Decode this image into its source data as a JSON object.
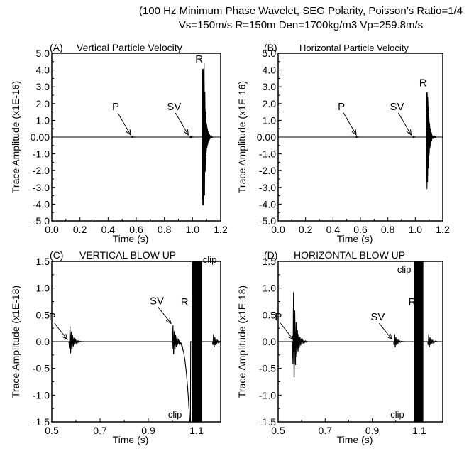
{
  "header": {
    "line1": "(100 Hz Minimum Phase Wavelet, SEG Polarity, Poisson’s Ratio=1/4",
    "line2": "Vs=150m/s  R=150m  Den=1700kg/m3  Vp=259.8m/s"
  },
  "chart_data": [
    {
      "type": "line",
      "panel": "(A)",
      "title": "Vertical Particle Velocity",
      "xlabel": "Time (s)",
      "ylabel": "Trace Amplitude (x1E-16)",
      "xlim": [
        0.0,
        1.2
      ],
      "ylim": [
        -5.0,
        5.0
      ],
      "xticks": [
        "0.0",
        "0.2",
        "0.4",
        "0.6",
        "0.8",
        "1.0",
        "1.2"
      ],
      "yticks": [
        "5.0",
        "4.0",
        "3.0",
        "2.0",
        "1.0",
        "0.00",
        "-1.0",
        "-2.0",
        "-3.0",
        "-4.0",
        "-5.0"
      ],
      "events": [
        {
          "label": "P",
          "x": 0.57,
          "y": 0.0
        },
        {
          "label": "SV",
          "x": 0.98,
          "y": 0.0
        },
        {
          "label": "R",
          "x": 1.08,
          "y": 4.1
        }
      ],
      "wavelets": [
        {
          "t": 0.57,
          "amp": 0.03,
          "decay": 0.008,
          "freq": 100
        },
        {
          "t": 0.985,
          "amp": 0.05,
          "decay": 0.008,
          "freq": 100
        },
        {
          "t": 1.082,
          "amp": 4.1,
          "decay": 0.012,
          "freq": 100
        },
        {
          "t": 1.075,
          "amp": -4.3,
          "decay": 0.01,
          "freq": 100
        }
      ],
      "clip": null
    },
    {
      "type": "line",
      "panel": "(B)",
      "title": "Horizontal Particle Velocity",
      "xlabel": "Time (s)",
      "ylabel": "Trace Amplitude (x1E-16)",
      "xlim": [
        0.0,
        1.2
      ],
      "ylim": [
        -5.0,
        5.0
      ],
      "xticks": [
        "0.0",
        "0.2",
        "0.4",
        "0.6",
        "0.8",
        "1.0",
        "1.2"
      ],
      "yticks": [
        "5.0",
        "4.0",
        "3.0",
        "2.0",
        "1.0",
        "0.00",
        "-1.0",
        "-2.0",
        "-3.0",
        "-4.0",
        "-5.0"
      ],
      "events": [
        {
          "label": "P",
          "x": 0.58,
          "y": 0.0
        },
        {
          "label": "SV",
          "x": 0.98,
          "y": 0.0
        },
        {
          "label": "R",
          "x": 1.09,
          "y": 2.7
        }
      ],
      "wavelets": [
        {
          "t": 0.57,
          "amp": 0.03,
          "decay": 0.008,
          "freq": 100
        },
        {
          "t": 0.985,
          "amp": 0.04,
          "decay": 0.008,
          "freq": 100
        },
        {
          "t": 1.09,
          "amp": 2.6,
          "decay": 0.012,
          "freq": 100
        },
        {
          "t": 1.085,
          "amp": -3.2,
          "decay": 0.01,
          "freq": 100
        }
      ],
      "clip": null
    },
    {
      "type": "line",
      "panel": "(C)",
      "title": "VERTICAL BLOW UP",
      "xlabel": "Time (s)",
      "ylabel": "Trace Amplitude (x1E-18)",
      "xlim": [
        0.5,
        1.2
      ],
      "ylim": [
        -1.5,
        1.5
      ],
      "xticks": [
        "0.5",
        "0.7",
        "0.9",
        "1.1"
      ],
      "yticks": [
        "1.5",
        "1.0",
        "0.5",
        "0.0",
        "-0.5",
        "-1.0",
        "-1.5"
      ],
      "events": [
        {
          "label": "P",
          "x": 0.57,
          "y": 0.0
        },
        {
          "label": "SV",
          "x": 1.0,
          "y": 0.3
        },
        {
          "label": "R",
          "x": 1.07,
          "y": 1.2
        }
      ],
      "wavelets": [
        {
          "t": 0.575,
          "amp": 0.3,
          "decay": 0.012,
          "freq": 100
        },
        {
          "t": 1.002,
          "amp": 0.32,
          "decay": 0.012,
          "freq": 100
        },
        {
          "t": 1.17,
          "amp": 0.15,
          "decay": 0.01,
          "freq": 100
        }
      ],
      "band": [
        1.082,
        1.12
      ],
      "dip": {
        "start": 1.02,
        "end": 1.075,
        "floor": -1.5
      },
      "clip": {
        "top": "clip",
        "bottom": "clip"
      }
    },
    {
      "type": "line",
      "panel": "(D)",
      "title": "HORIZONTAL BLOW UP",
      "xlabel": "Time (s)",
      "ylabel": "Trace Amplitude (x1E-18)",
      "xlim": [
        0.5,
        1.2
      ],
      "ylim": [
        -1.5,
        1.5
      ],
      "xticks": [
        "0.5",
        "0.7",
        "0.9",
        "1.1"
      ],
      "yticks": [
        "1.5",
        "1.0",
        "0.5",
        "0.0",
        "-0.5",
        "-1.0",
        "-1.5"
      ],
      "events": [
        {
          "label": "P",
          "x": 0.57,
          "y": 0.0
        },
        {
          "label": "SV",
          "x": 0.99,
          "y": 0.0
        },
        {
          "label": "R",
          "x": 1.09,
          "y": 0.95
        }
      ],
      "wavelets": [
        {
          "t": 0.565,
          "amp": 0.95,
          "decay": 0.012,
          "freq": 100
        },
        {
          "t": 0.995,
          "amp": 0.15,
          "decay": 0.01,
          "freq": 100
        },
        {
          "t": 1.14,
          "amp": 0.15,
          "decay": 0.01,
          "freq": 100
        }
      ],
      "band": [
        1.08,
        1.115
      ],
      "clip": {
        "top": "clip",
        "bottom": "clip"
      }
    }
  ]
}
